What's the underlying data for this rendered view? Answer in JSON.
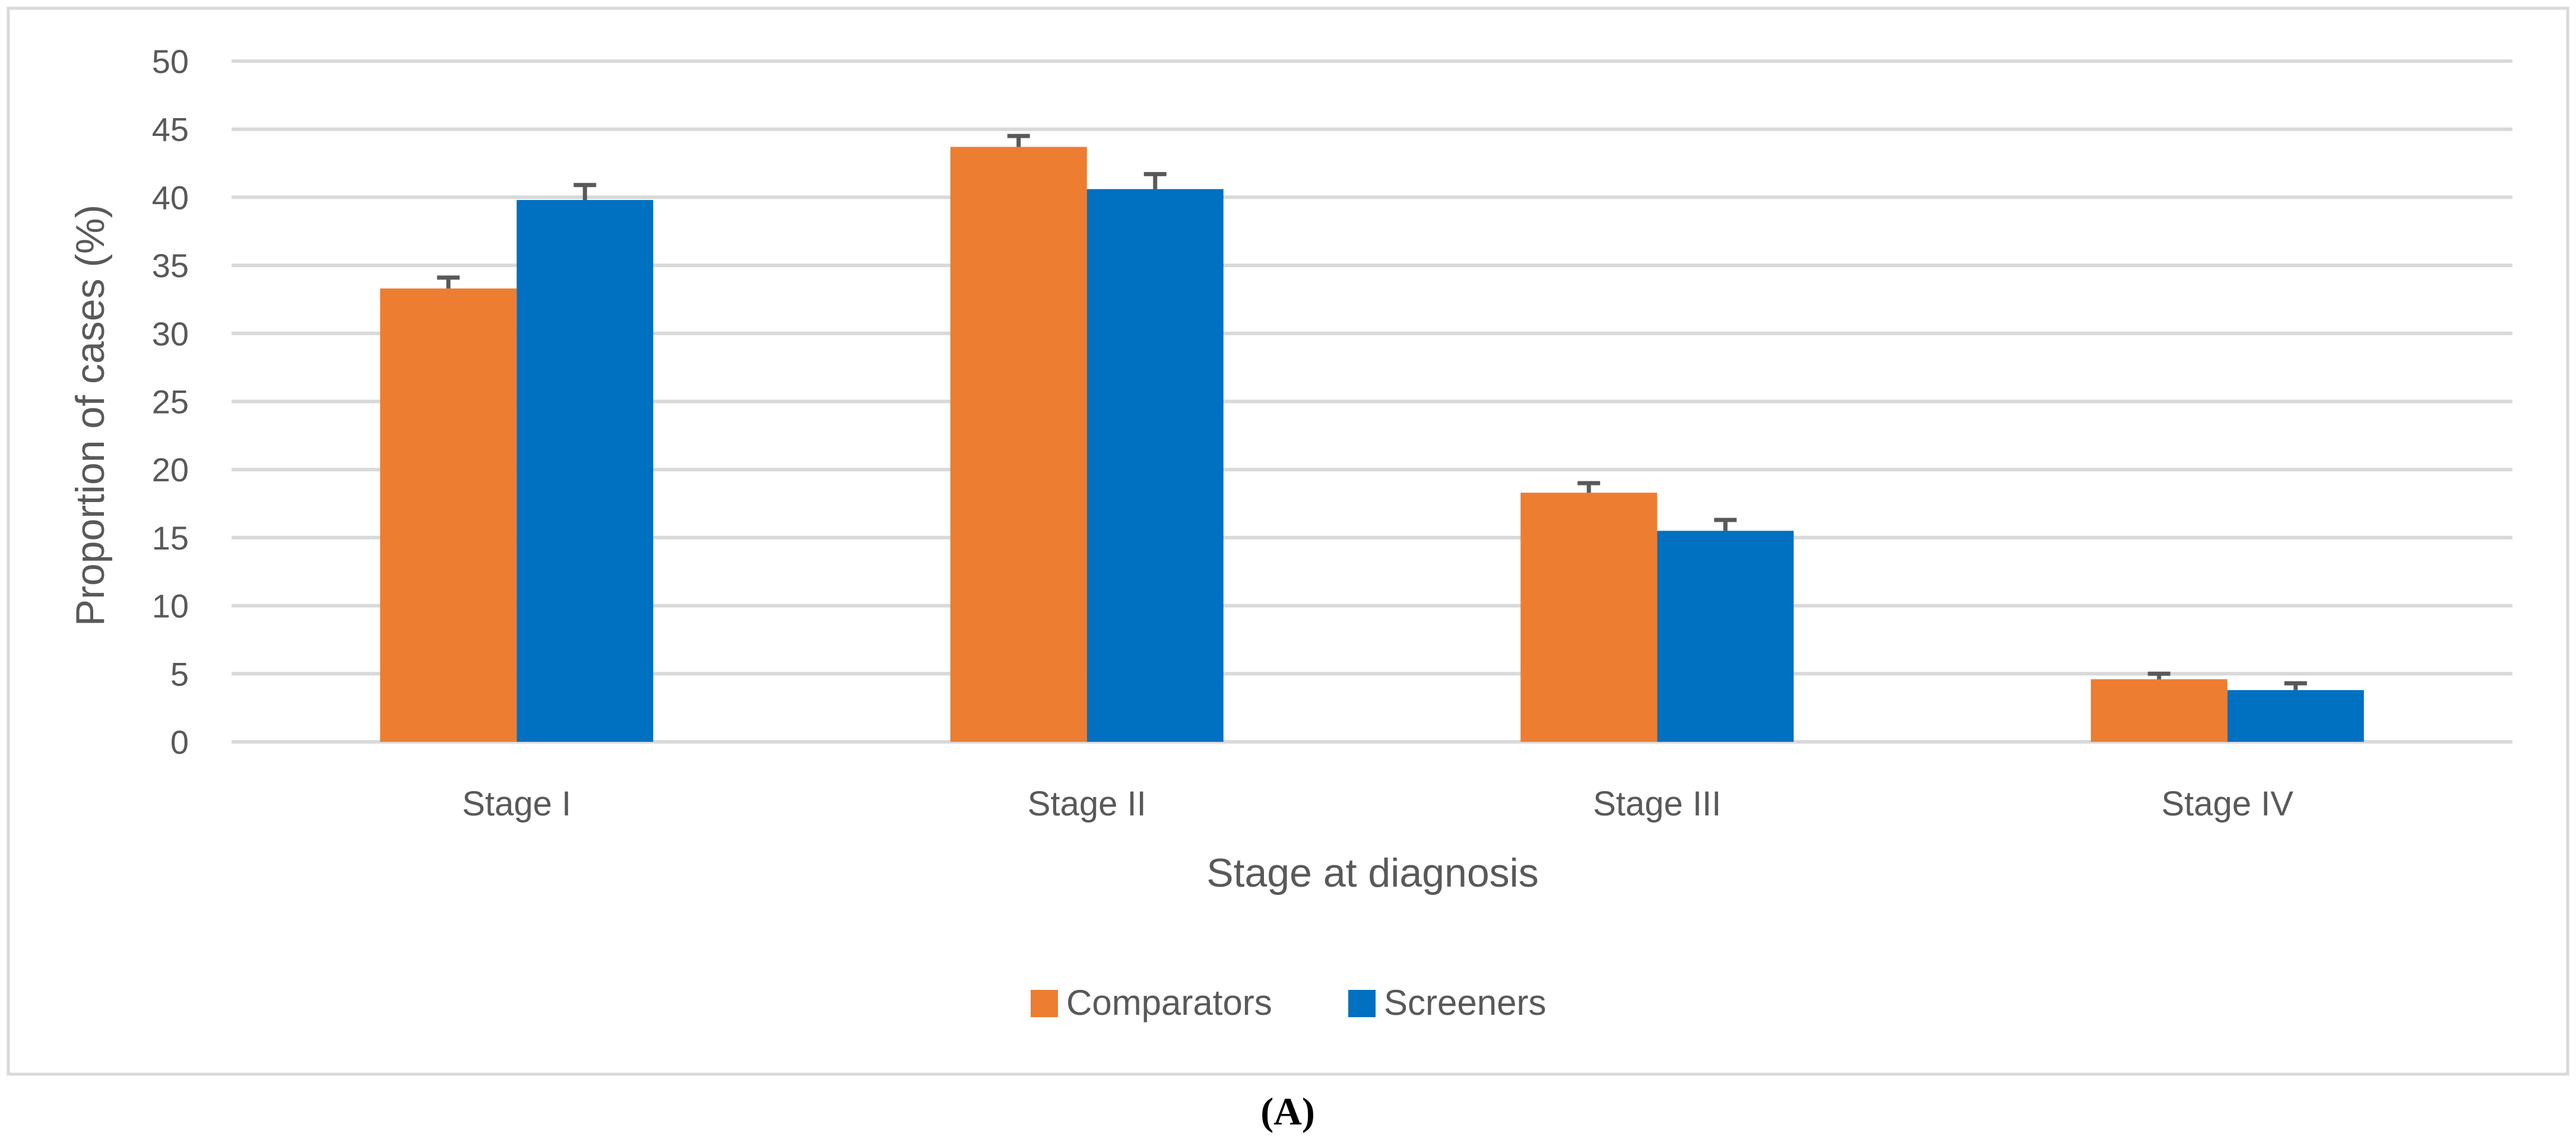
{
  "chart_data": {
    "type": "bar",
    "title": "",
    "xlabel": "Stage at diagnosis",
    "ylabel": "Proportion of cases (%)",
    "ylim": [
      0,
      50
    ],
    "ytick_step": 5,
    "grid": true,
    "legend_position": "bottom",
    "categories": [
      "Stage I",
      "Stage II",
      "Stage III",
      "Stage IV"
    ],
    "series": [
      {
        "name": "Comparators",
        "color": "#ed7d31",
        "values": [
          33.3,
          43.7,
          18.3,
          4.6
        ],
        "error": [
          0.8,
          0.8,
          0.7,
          0.4
        ]
      },
      {
        "name": "Screeners",
        "color": "#0070c0",
        "values": [
          39.8,
          40.6,
          15.5,
          3.8
        ],
        "error": [
          1.1,
          1.1,
          0.8,
          0.5
        ]
      }
    ],
    "panel_label": "(A)"
  }
}
